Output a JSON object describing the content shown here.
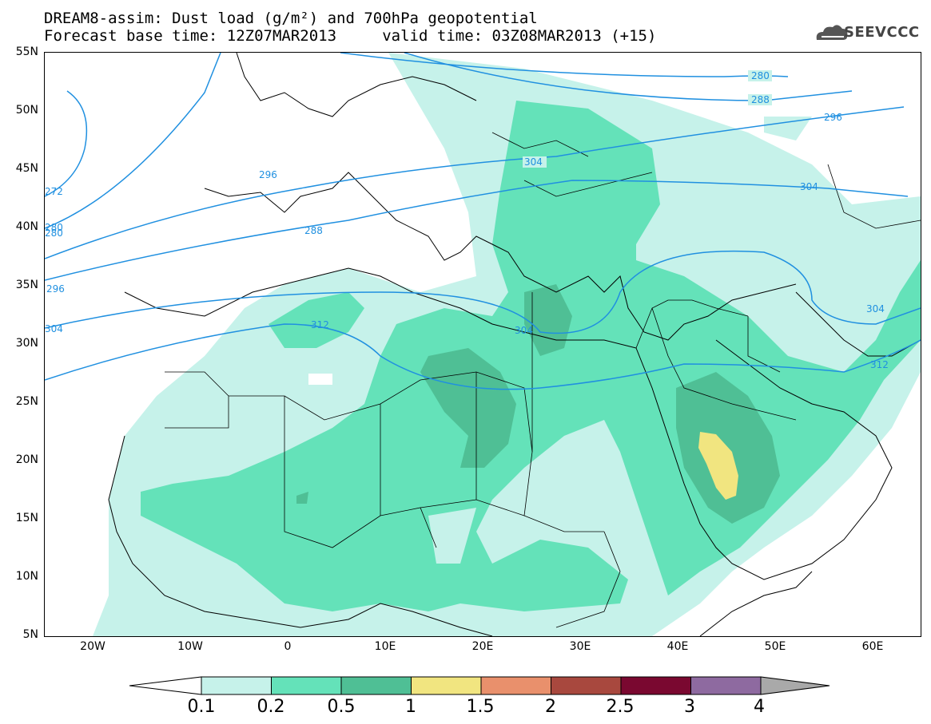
{
  "title": {
    "line1": "DREAM8-assim: Dust load (g/m²) and 700hPa geopotential",
    "line2": "Forecast base time: 12Z07MAR2013     valid time: 03Z08MAR2013 (+15)"
  },
  "logo": {
    "text": "SEEVCCC",
    "icon": "cloud-logo-icon"
  },
  "axes": {
    "lat_labels": [
      "55N",
      "50N",
      "45N",
      "40N",
      "35N",
      "30N",
      "25N",
      "20N",
      "15N",
      "10N",
      "5N"
    ],
    "lon_labels": [
      "20W",
      "10W",
      "0",
      "10E",
      "20E",
      "30E",
      "40E",
      "50E",
      "60E"
    ],
    "lat_range": [
      5,
      55
    ],
    "lon_range": [
      -25,
      65
    ]
  },
  "contours": {
    "labels": [
      "280",
      "288",
      "296",
      "304",
      "312",
      "296",
      "288",
      "280",
      "272",
      "280",
      "296",
      "304",
      "304",
      "304",
      "312",
      "304"
    ]
  },
  "colorbar": {
    "labels": [
      "0.1",
      "0.2",
      "0.5",
      "1",
      "1.5",
      "2",
      "2.5",
      "3",
      "4"
    ],
    "colors": [
      "#c6f2ea",
      "#64e2b9",
      "#4fbf95",
      "#f1e580",
      "#e9906c",
      "#a8483e",
      "#7a0830",
      "#8e6aa0"
    ],
    "left_arrow_color": "#ffffff",
    "right_arrow_color": "#a9a9a9"
  },
  "colors": {
    "contour": "#2090e0",
    "coast": "#000000"
  }
}
